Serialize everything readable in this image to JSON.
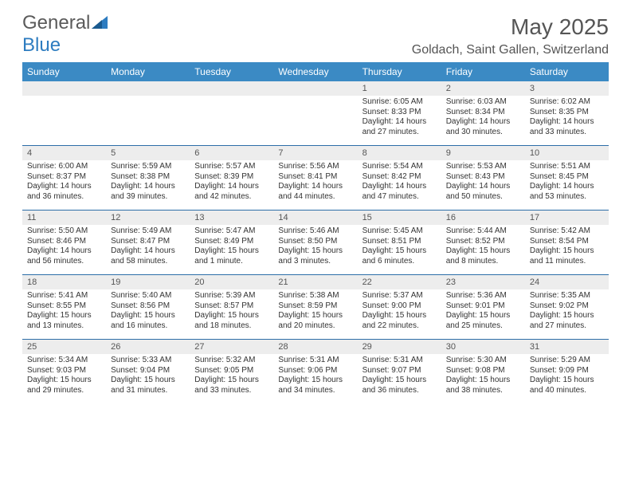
{
  "logo": {
    "text_a": "General",
    "text_b": "Blue"
  },
  "title": "May 2025",
  "location": "Goldach, Saint Gallen, Switzerland",
  "colors": {
    "header_bg": "#3b8ac4",
    "daynum_bg": "#ededed",
    "week_border": "#2d6ea8",
    "text": "#333333",
    "title_text": "#555555"
  },
  "day_names": [
    "Sunday",
    "Monday",
    "Tuesday",
    "Wednesday",
    "Thursday",
    "Friday",
    "Saturday"
  ],
  "weeks": [
    [
      null,
      null,
      null,
      null,
      {
        "n": "1",
        "sr": "6:05 AM",
        "ss": "8:33 PM",
        "dl": "14 hours and 27 minutes."
      },
      {
        "n": "2",
        "sr": "6:03 AM",
        "ss": "8:34 PM",
        "dl": "14 hours and 30 minutes."
      },
      {
        "n": "3",
        "sr": "6:02 AM",
        "ss": "8:35 PM",
        "dl": "14 hours and 33 minutes."
      }
    ],
    [
      {
        "n": "4",
        "sr": "6:00 AM",
        "ss": "8:37 PM",
        "dl": "14 hours and 36 minutes."
      },
      {
        "n": "5",
        "sr": "5:59 AM",
        "ss": "8:38 PM",
        "dl": "14 hours and 39 minutes."
      },
      {
        "n": "6",
        "sr": "5:57 AM",
        "ss": "8:39 PM",
        "dl": "14 hours and 42 minutes."
      },
      {
        "n": "7",
        "sr": "5:56 AM",
        "ss": "8:41 PM",
        "dl": "14 hours and 44 minutes."
      },
      {
        "n": "8",
        "sr": "5:54 AM",
        "ss": "8:42 PM",
        "dl": "14 hours and 47 minutes."
      },
      {
        "n": "9",
        "sr": "5:53 AM",
        "ss": "8:43 PM",
        "dl": "14 hours and 50 minutes."
      },
      {
        "n": "10",
        "sr": "5:51 AM",
        "ss": "8:45 PM",
        "dl": "14 hours and 53 minutes."
      }
    ],
    [
      {
        "n": "11",
        "sr": "5:50 AM",
        "ss": "8:46 PM",
        "dl": "14 hours and 56 minutes."
      },
      {
        "n": "12",
        "sr": "5:49 AM",
        "ss": "8:47 PM",
        "dl": "14 hours and 58 minutes."
      },
      {
        "n": "13",
        "sr": "5:47 AM",
        "ss": "8:49 PM",
        "dl": "15 hours and 1 minute."
      },
      {
        "n": "14",
        "sr": "5:46 AM",
        "ss": "8:50 PM",
        "dl": "15 hours and 3 minutes."
      },
      {
        "n": "15",
        "sr": "5:45 AM",
        "ss": "8:51 PM",
        "dl": "15 hours and 6 minutes."
      },
      {
        "n": "16",
        "sr": "5:44 AM",
        "ss": "8:52 PM",
        "dl": "15 hours and 8 minutes."
      },
      {
        "n": "17",
        "sr": "5:42 AM",
        "ss": "8:54 PM",
        "dl": "15 hours and 11 minutes."
      }
    ],
    [
      {
        "n": "18",
        "sr": "5:41 AM",
        "ss": "8:55 PM",
        "dl": "15 hours and 13 minutes."
      },
      {
        "n": "19",
        "sr": "5:40 AM",
        "ss": "8:56 PM",
        "dl": "15 hours and 16 minutes."
      },
      {
        "n": "20",
        "sr": "5:39 AM",
        "ss": "8:57 PM",
        "dl": "15 hours and 18 minutes."
      },
      {
        "n": "21",
        "sr": "5:38 AM",
        "ss": "8:59 PM",
        "dl": "15 hours and 20 minutes."
      },
      {
        "n": "22",
        "sr": "5:37 AM",
        "ss": "9:00 PM",
        "dl": "15 hours and 22 minutes."
      },
      {
        "n": "23",
        "sr": "5:36 AM",
        "ss": "9:01 PM",
        "dl": "15 hours and 25 minutes."
      },
      {
        "n": "24",
        "sr": "5:35 AM",
        "ss": "9:02 PM",
        "dl": "15 hours and 27 minutes."
      }
    ],
    [
      {
        "n": "25",
        "sr": "5:34 AM",
        "ss": "9:03 PM",
        "dl": "15 hours and 29 minutes."
      },
      {
        "n": "26",
        "sr": "5:33 AM",
        "ss": "9:04 PM",
        "dl": "15 hours and 31 minutes."
      },
      {
        "n": "27",
        "sr": "5:32 AM",
        "ss": "9:05 PM",
        "dl": "15 hours and 33 minutes."
      },
      {
        "n": "28",
        "sr": "5:31 AM",
        "ss": "9:06 PM",
        "dl": "15 hours and 34 minutes."
      },
      {
        "n": "29",
        "sr": "5:31 AM",
        "ss": "9:07 PM",
        "dl": "15 hours and 36 minutes."
      },
      {
        "n": "30",
        "sr": "5:30 AM",
        "ss": "9:08 PM",
        "dl": "15 hours and 38 minutes."
      },
      {
        "n": "31",
        "sr": "5:29 AM",
        "ss": "9:09 PM",
        "dl": "15 hours and 40 minutes."
      }
    ]
  ],
  "labels": {
    "sunrise": "Sunrise:",
    "sunset": "Sunset:",
    "daylight": "Daylight:"
  }
}
